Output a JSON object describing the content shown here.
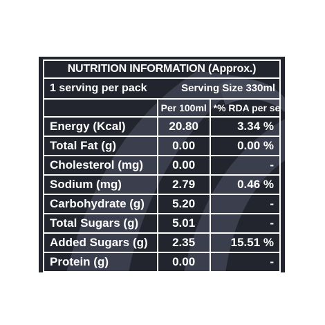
{
  "panel": {
    "title": "NUTRITION INFORMATION (Approx.)",
    "serving_per_pack": "1 serving per pack",
    "serving_size": "Serving Size 330ml",
    "column_headers": {
      "nutrient": "",
      "per_100ml": "Per 100ml",
      "rda": "*% RDA per serve"
    },
    "rows": [
      {
        "nutrient": "Energy (Kcal)",
        "per_100ml": "20.80",
        "rda": "3.34 %"
      },
      {
        "nutrient": "Total Fat (g)",
        "per_100ml": "0.00",
        "rda": "0.00 %"
      },
      {
        "nutrient": "Cholesterol (mg)",
        "per_100ml": "0.00",
        "rda": "-"
      },
      {
        "nutrient": "Sodium (mg)",
        "per_100ml": "2.79",
        "rda": "0.46 %"
      },
      {
        "nutrient": "Carbohydrate (g)",
        "per_100ml": "5.20",
        "rda": "-"
      },
      {
        "nutrient": "Total Sugars (g)",
        "per_100ml": "5.01",
        "rda": "-"
      },
      {
        "nutrient": "Added Sugars (g)",
        "per_100ml": "2.35",
        "rda": "15.51 %"
      },
      {
        "nutrient": "Protein (g)",
        "per_100ml": "0.00",
        "rda": "-"
      }
    ],
    "colors": {
      "background": "#23252e",
      "text": "#ffffff",
      "lines": "#ffffff",
      "art": "#4a4e5e"
    }
  }
}
